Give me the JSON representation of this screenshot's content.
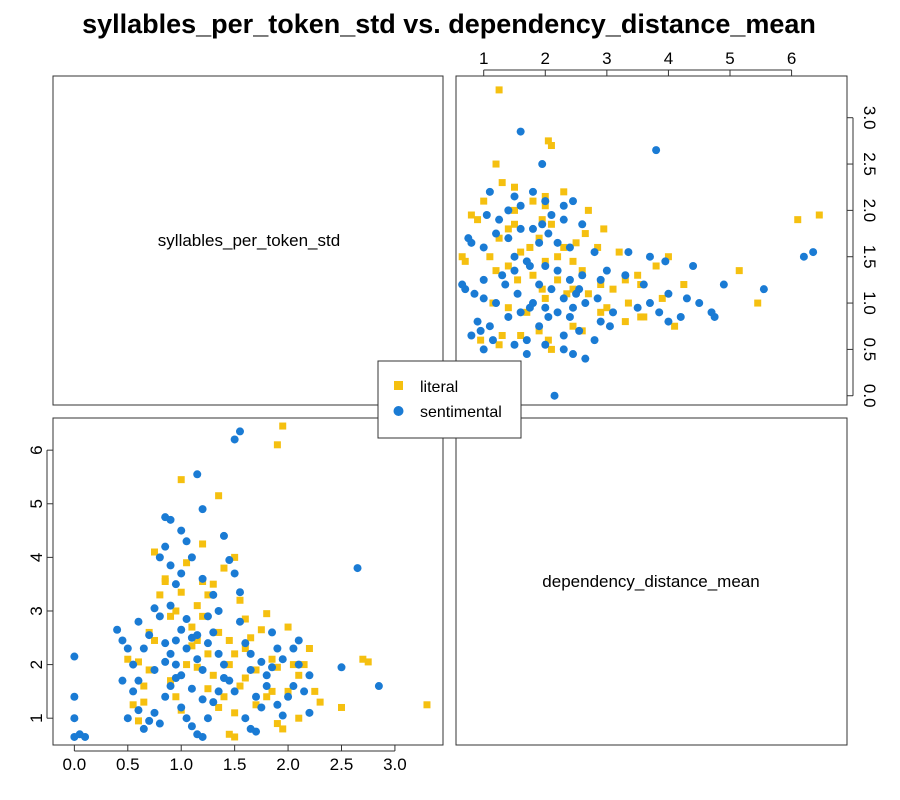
{
  "chart_data": {
    "type": "scatter",
    "subtype": "pairs-matrix",
    "title": "syllables_per_token_std vs. dependency_distance_mean",
    "variables": [
      "syllables_per_token_std",
      "dependency_distance_mean"
    ],
    "x_ticks_top": [
      "1",
      "2",
      "3",
      "4",
      "5",
      "6"
    ],
    "y_ticks_right": [
      "0.0",
      "0.5",
      "1.0",
      "1.5",
      "2.0",
      "2.5",
      "3.0"
    ],
    "x_ticks_bottom": [
      "0.0",
      "0.5",
      "1.0",
      "1.5",
      "2.0",
      "2.5",
      "3.0"
    ],
    "y_ticks_left": [
      "1",
      "2",
      "3",
      "4",
      "5",
      "6"
    ],
    "xlim_top": [
      0.55,
      6.9
    ],
    "ylim_right": [
      -0.1,
      3.45
    ],
    "xlim_bottom": [
      -0.2,
      3.45
    ],
    "ylim_left": [
      0.5,
      6.6
    ],
    "legend": {
      "position": "center",
      "entries": [
        {
          "label": "literal",
          "color": "#f5c010",
          "marker": "square"
        },
        {
          "label": "sentimental",
          "color": "#1a7bd4",
          "marker": "circle"
        }
      ]
    },
    "series": [
      {
        "name": "literal",
        "color": "#f5c010",
        "marker": "square",
        "x_label": "syllables_per_token_std",
        "y_label": "dependency_distance_mean",
        "points": [
          [
            1.25,
            3.3
          ],
          [
            1.0,
            5.45
          ],
          [
            1.35,
            5.15
          ],
          [
            1.2,
            4.25
          ],
          [
            1.95,
            6.45
          ],
          [
            1.9,
            6.1
          ],
          [
            3.3,
            1.25
          ],
          [
            2.75,
            2.05
          ],
          [
            2.7,
            2.1
          ],
          [
            2.5,
            1.2
          ],
          [
            1.15,
            2.45
          ],
          [
            1.25,
            2.2
          ],
          [
            1.45,
            2.0
          ],
          [
            1.3,
            1.8
          ],
          [
            0.6,
            2.05
          ],
          [
            0.5,
            2.1
          ],
          [
            0.7,
            1.9
          ],
          [
            1.1,
            2.7
          ],
          [
            1.6,
            2.3
          ],
          [
            1.7,
            1.9
          ],
          [
            1.55,
            1.6
          ],
          [
            1.5,
            2.2
          ],
          [
            1.8,
            1.4
          ],
          [
            1.85,
            1.5
          ],
          [
            2.05,
            2.0
          ],
          [
            2.1,
            1.8
          ],
          [
            2.2,
            2.3
          ],
          [
            2.25,
            1.5
          ],
          [
            2.1,
            1.0
          ],
          [
            1.9,
            0.9
          ],
          [
            1.95,
            0.8
          ],
          [
            0.95,
            1.4
          ],
          [
            0.9,
            2.9
          ],
          [
            0.85,
            3.6
          ],
          [
            0.8,
            3.3
          ],
          [
            1.05,
            3.9
          ],
          [
            1.15,
            3.1
          ],
          [
            1.2,
            2.9
          ],
          [
            1.35,
            2.6
          ],
          [
            1.4,
            1.4
          ],
          [
            1.45,
            0.7
          ],
          [
            1.5,
            0.65
          ],
          [
            0.55,
            1.25
          ],
          [
            0.6,
            0.95
          ],
          [
            0.65,
            1.6
          ],
          [
            0.75,
            2.45
          ],
          [
            1.0,
            1.15
          ],
          [
            1.05,
            2.0
          ],
          [
            1.25,
            1.55
          ],
          [
            1.6,
            1.75
          ],
          [
            1.65,
            2.5
          ],
          [
            1.75,
            2.65
          ],
          [
            1.8,
            2.95
          ],
          [
            2.0,
            2.7
          ],
          [
            0.9,
            1.7
          ],
          [
            0.95,
            3.0
          ],
          [
            1.3,
            3.5
          ],
          [
            1.55,
            3.2
          ],
          [
            1.6,
            2.85
          ],
          [
            1.7,
            1.25
          ],
          [
            2.3,
            1.3
          ],
          [
            2.0,
            1.5
          ],
          [
            1.4,
            3.8
          ],
          [
            1.5,
            4.0
          ],
          [
            0.75,
            4.1
          ],
          [
            0.85,
            3.55
          ],
          [
            1.1,
            2.35
          ],
          [
            1.15,
            1.95
          ],
          [
            0.7,
            2.6
          ],
          [
            1.5,
            1.1
          ],
          [
            1.35,
            1.2
          ],
          [
            1.85,
            2.1
          ],
          [
            0.65,
            1.3
          ],
          [
            1.0,
            3.35
          ],
          [
            1.2,
            3.55
          ],
          [
            1.45,
            2.45
          ],
          [
            1.9,
            1.95
          ],
          [
            2.15,
            2.0
          ]
        ]
      },
      {
        "name": "sentimental",
        "color": "#1a7bd4",
        "marker": "circle",
        "x_label": "syllables_per_token_std",
        "y_label": "dependency_distance_mean",
        "points": [
          [
            2.85,
            1.6
          ],
          [
            2.65,
            3.8
          ],
          [
            2.5,
            1.95
          ],
          [
            1.55,
            6.35
          ],
          [
            1.5,
            6.2
          ],
          [
            1.65,
            1.9
          ],
          [
            1.15,
            5.55
          ],
          [
            1.2,
            4.9
          ],
          [
            0.85,
            4.75
          ],
          [
            0.9,
            4.7
          ],
          [
            0.0,
            2.15
          ],
          [
            0.0,
            1.4
          ],
          [
            0.0,
            1.0
          ],
          [
            0.0,
            0.65
          ],
          [
            0.05,
            0.7
          ],
          [
            0.1,
            0.65
          ],
          [
            0.4,
            2.65
          ],
          [
            0.45,
            2.45
          ],
          [
            0.5,
            2.3
          ],
          [
            0.55,
            2.0
          ],
          [
            0.6,
            1.7
          ],
          [
            0.65,
            2.3
          ],
          [
            0.7,
            2.55
          ],
          [
            0.75,
            3.05
          ],
          [
            0.8,
            2.9
          ],
          [
            0.85,
            2.4
          ],
          [
            0.9,
            2.2
          ],
          [
            0.95,
            2.0
          ],
          [
            1.0,
            1.8
          ],
          [
            1.05,
            2.3
          ],
          [
            1.1,
            2.5
          ],
          [
            1.15,
            2.1
          ],
          [
            1.2,
            1.9
          ],
          [
            1.25,
            2.4
          ],
          [
            1.3,
            2.6
          ],
          [
            1.35,
            2.2
          ],
          [
            1.4,
            2.0
          ],
          [
            1.45,
            1.7
          ],
          [
            1.5,
            1.5
          ],
          [
            1.55,
            2.8
          ],
          [
            1.6,
            2.4
          ],
          [
            1.65,
            2.2
          ],
          [
            1.7,
            1.4
          ],
          [
            1.75,
            1.2
          ],
          [
            1.8,
            1.8
          ],
          [
            1.85,
            2.6
          ],
          [
            1.9,
            2.3
          ],
          [
            1.95,
            2.1
          ],
          [
            2.0,
            1.4
          ],
          [
            2.05,
            1.6
          ],
          [
            2.1,
            2.0
          ],
          [
            2.15,
            1.5
          ],
          [
            2.2,
            1.1
          ],
          [
            0.9,
            3.1
          ],
          [
            0.95,
            3.5
          ],
          [
            1.0,
            3.7
          ],
          [
            1.05,
            4.3
          ],
          [
            1.1,
            4.0
          ],
          [
            1.2,
            3.6
          ],
          [
            1.3,
            3.3
          ],
          [
            1.35,
            3.0
          ],
          [
            1.4,
            4.4
          ],
          [
            1.45,
            3.95
          ],
          [
            1.5,
            3.7
          ],
          [
            1.55,
            3.35
          ],
          [
            1.0,
            1.2
          ],
          [
            1.05,
            1.0
          ],
          [
            1.1,
            0.85
          ],
          [
            1.15,
            0.7
          ],
          [
            1.2,
            0.65
          ],
          [
            0.75,
            1.1
          ],
          [
            0.8,
            0.9
          ],
          [
            0.85,
            1.4
          ],
          [
            0.9,
            1.6
          ],
          [
            0.95,
            1.75
          ],
          [
            1.6,
            1.0
          ],
          [
            1.65,
            0.8
          ],
          [
            1.7,
            0.75
          ],
          [
            1.3,
            1.3
          ],
          [
            1.35,
            1.5
          ],
          [
            1.4,
            1.75
          ],
          [
            1.25,
            1.0
          ],
          [
            0.55,
            1.5
          ],
          [
            0.6,
            1.15
          ],
          [
            0.65,
            0.8
          ],
          [
            0.7,
            0.95
          ],
          [
            1.0,
            2.65
          ],
          [
            1.05,
            2.85
          ],
          [
            1.15,
            2.55
          ],
          [
            1.25,
            2.9
          ],
          [
            0.85,
            2.05
          ],
          [
            0.95,
            2.45
          ],
          [
            1.1,
            1.55
          ],
          [
            1.2,
            1.35
          ],
          [
            0.45,
            1.7
          ],
          [
            0.5,
            1.0
          ],
          [
            0.6,
            2.8
          ],
          [
            0.75,
            1.9
          ],
          [
            1.75,
            2.05
          ],
          [
            1.8,
            1.6
          ],
          [
            1.85,
            1.95
          ],
          [
            1.9,
            1.25
          ],
          [
            1.95,
            1.05
          ],
          [
            2.05,
            2.3
          ],
          [
            2.1,
            2.45
          ],
          [
            2.2,
            1.8
          ],
          [
            0.8,
            4.0
          ],
          [
            0.85,
            4.2
          ],
          [
            0.9,
            3.85
          ],
          [
            1.0,
            4.5
          ]
        ]
      }
    ]
  }
}
